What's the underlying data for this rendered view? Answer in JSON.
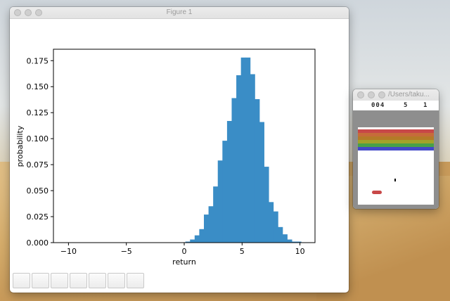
{
  "figure_window": {
    "title": "Figure 1",
    "toolbar_buttons": [
      "home-icon",
      "back-icon",
      "forward-icon",
      "pan-icon",
      "zoom-icon",
      "configure-icon",
      "save-icon"
    ]
  },
  "game_window": {
    "title": "/Users/taku...",
    "score_left": "004",
    "score_mid": "5",
    "score_right": "1",
    "brick_colors": [
      "#c84848",
      "#c66c3a",
      "#b47a28",
      "#a2a22a",
      "#48a048",
      "#4248c8"
    ],
    "frame_color": "#8e8e8e",
    "paddle_color": "#c84848"
  },
  "chart_data": {
    "type": "bar",
    "xlabel": "return",
    "ylabel": "probability",
    "xlim": [
      -11.3,
      11.3
    ],
    "ylim": [
      0,
      0.186
    ],
    "xticks": [
      -10,
      -5,
      0,
      5,
      10
    ],
    "yticks": [
      "0.000",
      "0.025",
      "0.050",
      "0.075",
      "0.100",
      "0.125",
      "0.150",
      "0.175"
    ],
    "bin_width": 0.4,
    "bin_edges_start": 0.1,
    "values": [
      0.001,
      0.003,
      0.007,
      0.013,
      0.027,
      0.035,
      0.054,
      0.079,
      0.098,
      0.117,
      0.139,
      0.161,
      0.178,
      0.178,
      0.162,
      0.138,
      0.116,
      0.073,
      0.039,
      0.03,
      0.015,
      0.008,
      0.003,
      0.001,
      0.001
    ],
    "color": "#3a8dc6",
    "grid": false
  }
}
